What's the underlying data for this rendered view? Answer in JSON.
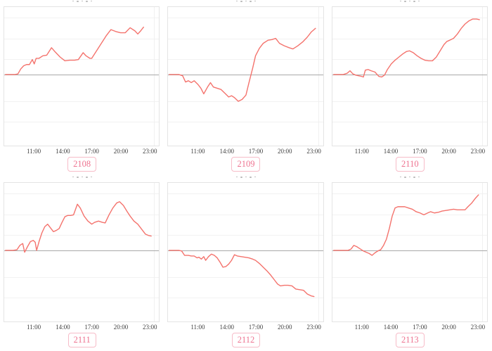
{
  "page": {
    "background": "#ffffff",
    "layout": "2x3 grid of line charts"
  },
  "axis": {
    "ticks": [
      "11:00",
      "14:00",
      "17:00",
      "20:00",
      "23:00"
    ],
    "tick_hours": [
      11,
      14,
      17,
      20,
      23
    ],
    "domain_hours": [
      7.87,
      24.02
    ],
    "y_axis_labels": "none (unlabeled y axis, gray zero baseline shown)"
  },
  "style": {
    "line_color": "#f4736d",
    "zero_line_color": "#a9a9a9",
    "grid_color": "#f2f2f2",
    "plot_border_color": "#e4e4e4",
    "badge_border_color": "#f7bcc8",
    "badge_text_color": "#ee7390",
    "tick_text_color": "#404040"
  },
  "chart_data": [
    {
      "type": "line",
      "title": "2108",
      "x_tick_labels": [
        "11:00",
        "14:00",
        "17:00",
        "20:00",
        "23:00"
      ],
      "ylabel": "",
      "baseline": 0,
      "ylim_relative": [
        -114,
        108
      ],
      "x_hours": [
        8.0,
        8.5,
        9.0,
        9.3,
        9.6,
        9.9,
        10.2,
        10.5,
        10.8,
        11.0,
        11.2,
        11.5,
        11.9,
        12.3,
        12.8,
        13.2,
        13.7,
        14.2,
        14.7,
        15.2,
        15.6,
        16.1,
        16.4,
        16.8,
        17.0,
        17.5,
        18.0,
        18.5,
        19.0,
        19.5,
        20.0,
        20.5,
        21.0,
        21.5,
        21.8,
        22.1,
        22.4
      ],
      "values": [
        0,
        0,
        0,
        1,
        9,
        14,
        16,
        16,
        24,
        17,
        26,
        26,
        30,
        31,
        43,
        36,
        28,
        22,
        23,
        23,
        24,
        35,
        30,
        26,
        26,
        38,
        50,
        62,
        72,
        69,
        67,
        67,
        75,
        70,
        65,
        70,
        76
      ]
    },
    {
      "type": "line",
      "title": "2109",
      "x_tick_labels": [
        "11:00",
        "14:00",
        "17:00",
        "20:00",
        "23:00"
      ],
      "ylabel": "",
      "baseline": 0,
      "ylim_relative": [
        -114,
        108
      ],
      "x_hours": [
        8.0,
        8.5,
        9.0,
        9.4,
        9.7,
        10.0,
        10.3,
        10.6,
        11.0,
        11.3,
        11.6,
        12.0,
        12.3,
        12.6,
        13.0,
        13.4,
        13.8,
        14.2,
        14.5,
        14.8,
        15.2,
        15.6,
        16.0,
        16.3,
        16.7,
        17.0,
        17.4,
        17.8,
        18.3,
        18.7,
        19.1,
        19.5,
        20.0,
        20.5,
        20.9,
        21.4,
        21.9,
        22.4,
        22.8,
        23.1,
        23.25
      ],
      "values": [
        0,
        0,
        0,
        -2,
        -12,
        -10,
        -13,
        -10,
        -16,
        -22,
        -31,
        -20,
        -13,
        -20,
        -22,
        -24,
        -30,
        -36,
        -34,
        -37,
        -43,
        -40,
        -33,
        -14,
        10,
        30,
        42,
        50,
        55,
        56,
        58,
        50,
        46,
        43,
        41,
        46,
        52,
        60,
        68,
        72,
        74
      ]
    },
    {
      "type": "line",
      "title": "2110",
      "x_tick_labels": [
        "11:00",
        "14:00",
        "17:00",
        "20:00",
        "23:00"
      ],
      "ylabel": "",
      "baseline": 0,
      "ylim_relative": [
        -114,
        108
      ],
      "x_hours": [
        8.0,
        8.5,
        9.0,
        9.4,
        9.7,
        10.0,
        10.3,
        10.6,
        10.9,
        11.1,
        11.3,
        11.6,
        11.9,
        12.3,
        12.7,
        13.0,
        13.3,
        13.6,
        14.0,
        14.4,
        14.8,
        15.2,
        15.6,
        15.9,
        16.3,
        16.7,
        17.1,
        17.5,
        17.9,
        18.3,
        18.7,
        19.1,
        19.5,
        19.8,
        20.1,
        20.5,
        20.9,
        21.3,
        21.7,
        22.1,
        22.5,
        22.9,
        23.2
      ],
      "values": [
        0,
        0,
        0,
        2,
        6,
        1,
        -1,
        -2,
        -3,
        -4,
        7,
        8,
        6,
        4,
        -3,
        -4,
        -1,
        8,
        17,
        23,
        28,
        33,
        37,
        38,
        35,
        30,
        26,
        23,
        22,
        22,
        28,
        38,
        48,
        53,
        55,
        58,
        65,
        74,
        81,
        86,
        89,
        89,
        88
      ]
    },
    {
      "type": "line",
      "title": "2111",
      "x_tick_labels": [
        "11:00",
        "14:00",
        "17:00",
        "20:00",
        "23:00"
      ],
      "ylabel": "",
      "baseline": 0,
      "ylim_relative": [
        -114,
        108
      ],
      "x_hours": [
        8.0,
        8.4,
        8.8,
        9.2,
        9.5,
        9.8,
        10.0,
        10.3,
        10.6,
        10.9,
        11.1,
        11.25,
        11.5,
        11.8,
        12.1,
        12.4,
        12.7,
        13.0,
        13.3,
        13.6,
        13.9,
        14.2,
        14.5,
        14.8,
        15.1,
        15.5,
        15.8,
        16.2,
        16.6,
        17.0,
        17.3,
        17.7,
        18.1,
        18.4,
        18.8,
        19.2,
        19.6,
        19.9,
        20.3,
        20.7,
        21.0,
        21.4,
        21.8,
        22.2,
        22.6,
        22.9,
        23.2
      ],
      "values": [
        0,
        0,
        0,
        1,
        8,
        11,
        -3,
        6,
        14,
        16,
        13,
        0,
        14,
        28,
        38,
        42,
        36,
        30,
        32,
        35,
        45,
        54,
        56,
        56,
        57,
        74,
        68,
        55,
        47,
        42,
        45,
        47,
        45,
        44,
        57,
        68,
        76,
        78,
        72,
        62,
        55,
        47,
        42,
        34,
        26,
        24,
        23
      ]
    },
    {
      "type": "line",
      "title": "2112",
      "x_tick_labels": [
        "11:00",
        "14:00",
        "17:00",
        "20:00",
        "23:00"
      ],
      "ylabel": "",
      "baseline": 0,
      "ylim_relative": [
        -114,
        108
      ],
      "x_hours": [
        8.0,
        8.5,
        9.0,
        9.3,
        9.6,
        10.0,
        10.3,
        10.6,
        10.9,
        11.1,
        11.35,
        11.6,
        11.8,
        12.1,
        12.4,
        12.7,
        13.0,
        13.3,
        13.6,
        13.9,
        14.2,
        14.5,
        14.8,
        15.1,
        15.5,
        15.9,
        16.3,
        16.7,
        17.0,
        17.4,
        17.8,
        18.2,
        18.6,
        19.0,
        19.3,
        19.6,
        20.0,
        20.4,
        20.8,
        21.2,
        21.6,
        22.0,
        22.4,
        22.8,
        23.1
      ],
      "values": [
        0,
        0,
        0,
        -1,
        -8,
        -8,
        -9,
        -9,
        -12,
        -11,
        -14,
        -10,
        -16,
        -10,
        -6,
        -8,
        -12,
        -19,
        -27,
        -26,
        -22,
        -16,
        -7,
        -9,
        -10,
        -11,
        -12,
        -14,
        -16,
        -21,
        -27,
        -33,
        -40,
        -48,
        -54,
        -57,
        -56,
        -56,
        -57,
        -62,
        -63,
        -64,
        -70,
        -73,
        -74
      ]
    },
    {
      "type": "line",
      "title": "2113",
      "x_tick_labels": [
        "11:00",
        "14:00",
        "17:00",
        "20:00",
        "23:00"
      ],
      "ylabel": "",
      "baseline": 0,
      "ylim_relative": [
        -114,
        108
      ],
      "x_hours": [
        8.0,
        8.5,
        9.0,
        9.5,
        9.8,
        10.1,
        10.4,
        10.8,
        11.1,
        11.4,
        11.7,
        12.0,
        12.3,
        12.6,
        12.9,
        13.2,
        13.5,
        13.8,
        14.1,
        14.4,
        14.7,
        15.0,
        15.4,
        15.8,
        16.2,
        16.6,
        17.0,
        17.4,
        17.8,
        18.1,
        18.5,
        18.9,
        19.3,
        19.7,
        20.1,
        20.5,
        20.9,
        21.3,
        21.7,
        22.0,
        22.4,
        22.8,
        23.1
      ],
      "values": [
        0,
        0,
        0,
        0,
        2,
        8,
        6,
        2,
        -1,
        -3,
        -5,
        -8,
        -4,
        -1,
        1,
        8,
        18,
        35,
        55,
        68,
        70,
        70,
        70,
        68,
        66,
        62,
        60,
        57,
        60,
        62,
        60,
        61,
        63,
        64,
        65,
        66,
        65,
        65,
        65,
        70,
        76,
        84,
        89
      ]
    }
  ]
}
